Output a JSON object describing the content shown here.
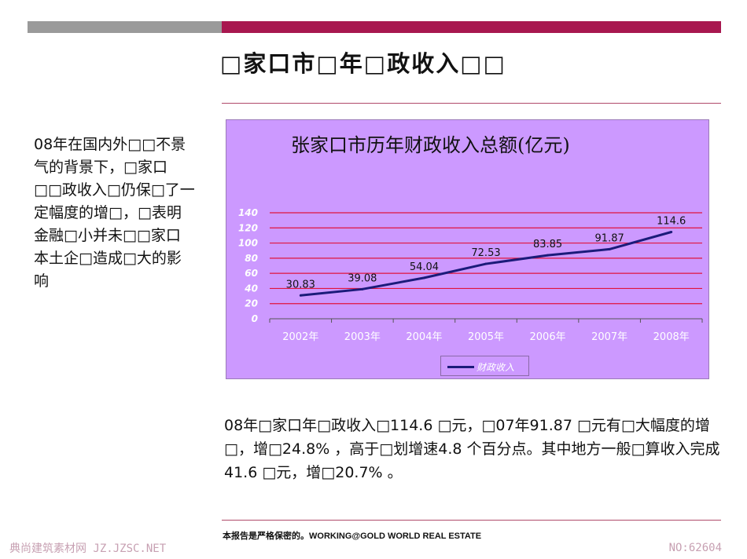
{
  "slide": {
    "title": "□家口市□年□政收入□□",
    "left_paragraph": "08年在国内外□□不景气的背景下，□家口□□政收入□仍保□了一定幅度的增□，□表明金融□小并未□□家口本土企□造成□大的影响",
    "body_paragraph": "08年□家口年□政收入□114.6 □元，□07年91.87 □元有□大幅度的增□，增□24.8% ，高于□划增速4.8 个百分点。其中地方一般□算收入完成41.6 □元，增□20.7% 。",
    "footer": "本报告是严格保密的。WORKING@GOLD WORLD REAL ESTATE",
    "watermark_left": "典尚建筑素材网 JZ.JZSC.NET",
    "watermark_right": "NO:62604"
  },
  "colors": {
    "accent": "#a8174f",
    "gray_bar": "#9a9a9a",
    "chart_bg": "#cc99ff",
    "gridline": "#e0143c",
    "series_line": "#1b1b7a"
  },
  "chart_data": {
    "type": "line",
    "title": "张家口市历年财政收入总额(亿元)",
    "categories": [
      "2002年",
      "2003年",
      "2004年",
      "2005年",
      "2006年",
      "2007年",
      "2008年"
    ],
    "series": [
      {
        "name": "财政收入",
        "values": [
          30.83,
          39.08,
          54.04,
          72.53,
          83.85,
          91.87,
          114.6
        ]
      }
    ],
    "data_labels": [
      "30.83",
      "39.08",
      "54.04",
      "72.53",
      "83.85",
      "91.87",
      "114.6"
    ],
    "y_ticks": [
      "0",
      "20",
      "40",
      "60",
      "80",
      "100",
      "120",
      "140"
    ],
    "ylim": [
      0,
      140
    ],
    "grid": true,
    "legend": "bottom"
  }
}
